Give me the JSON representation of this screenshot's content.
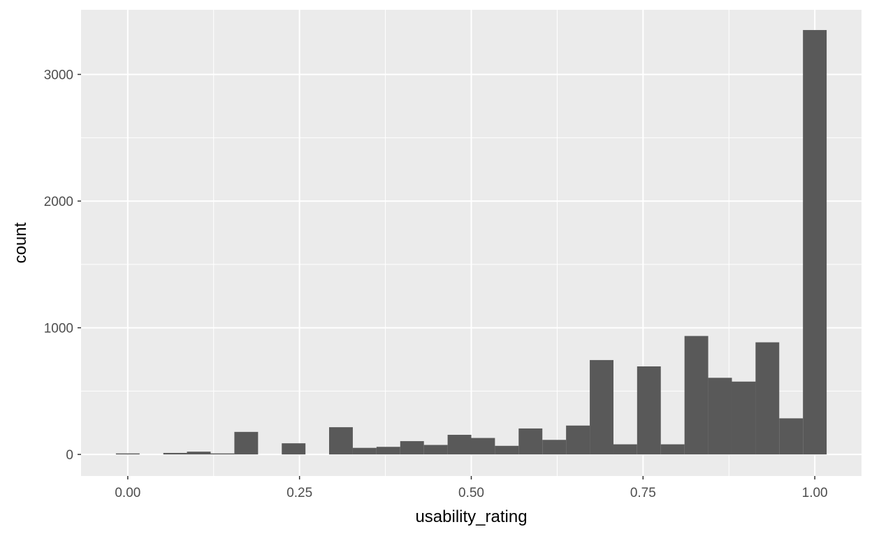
{
  "chart_data": {
    "type": "bar",
    "xlabel": "usability_rating",
    "ylabel": "count",
    "xlim": [
      -0.068,
      1.068
    ],
    "ylim": [
      -170,
      3510
    ],
    "x_ticks": [
      {
        "value": 0.0,
        "label": "0.00"
      },
      {
        "value": 0.25,
        "label": "0.25"
      },
      {
        "value": 0.5,
        "label": "0.50"
      },
      {
        "value": 0.75,
        "label": "0.75"
      },
      {
        "value": 1.0,
        "label": "1.00"
      }
    ],
    "y_ticks": [
      {
        "value": 0,
        "label": "0"
      },
      {
        "value": 1000,
        "label": "1000"
      },
      {
        "value": 2000,
        "label": "2000"
      },
      {
        "value": 3000,
        "label": "3000"
      }
    ],
    "bin_width": 0.0345,
    "bin_centers": [
      0.0,
      0.0345,
      0.069,
      0.1034,
      0.1379,
      0.1724,
      0.2069,
      0.2414,
      0.2759,
      0.3103,
      0.3448,
      0.3793,
      0.4138,
      0.4483,
      0.4828,
      0.5172,
      0.5517,
      0.5862,
      0.6207,
      0.6552,
      0.6897,
      0.7241,
      0.7586,
      0.7931,
      0.8276,
      0.8621,
      0.8966,
      0.931,
      0.9655,
      1.0
    ],
    "values": [
      8,
      0,
      12,
      22,
      8,
      178,
      0,
      88,
      0,
      215,
      52,
      60,
      105,
      75,
      155,
      130,
      68,
      205,
      115,
      228,
      745,
      80,
      695,
      80,
      935,
      605,
      575,
      885,
      285,
      3350
    ],
    "bar_color": "#595959",
    "panel_color": "#EBEBEB",
    "grid": true
  }
}
